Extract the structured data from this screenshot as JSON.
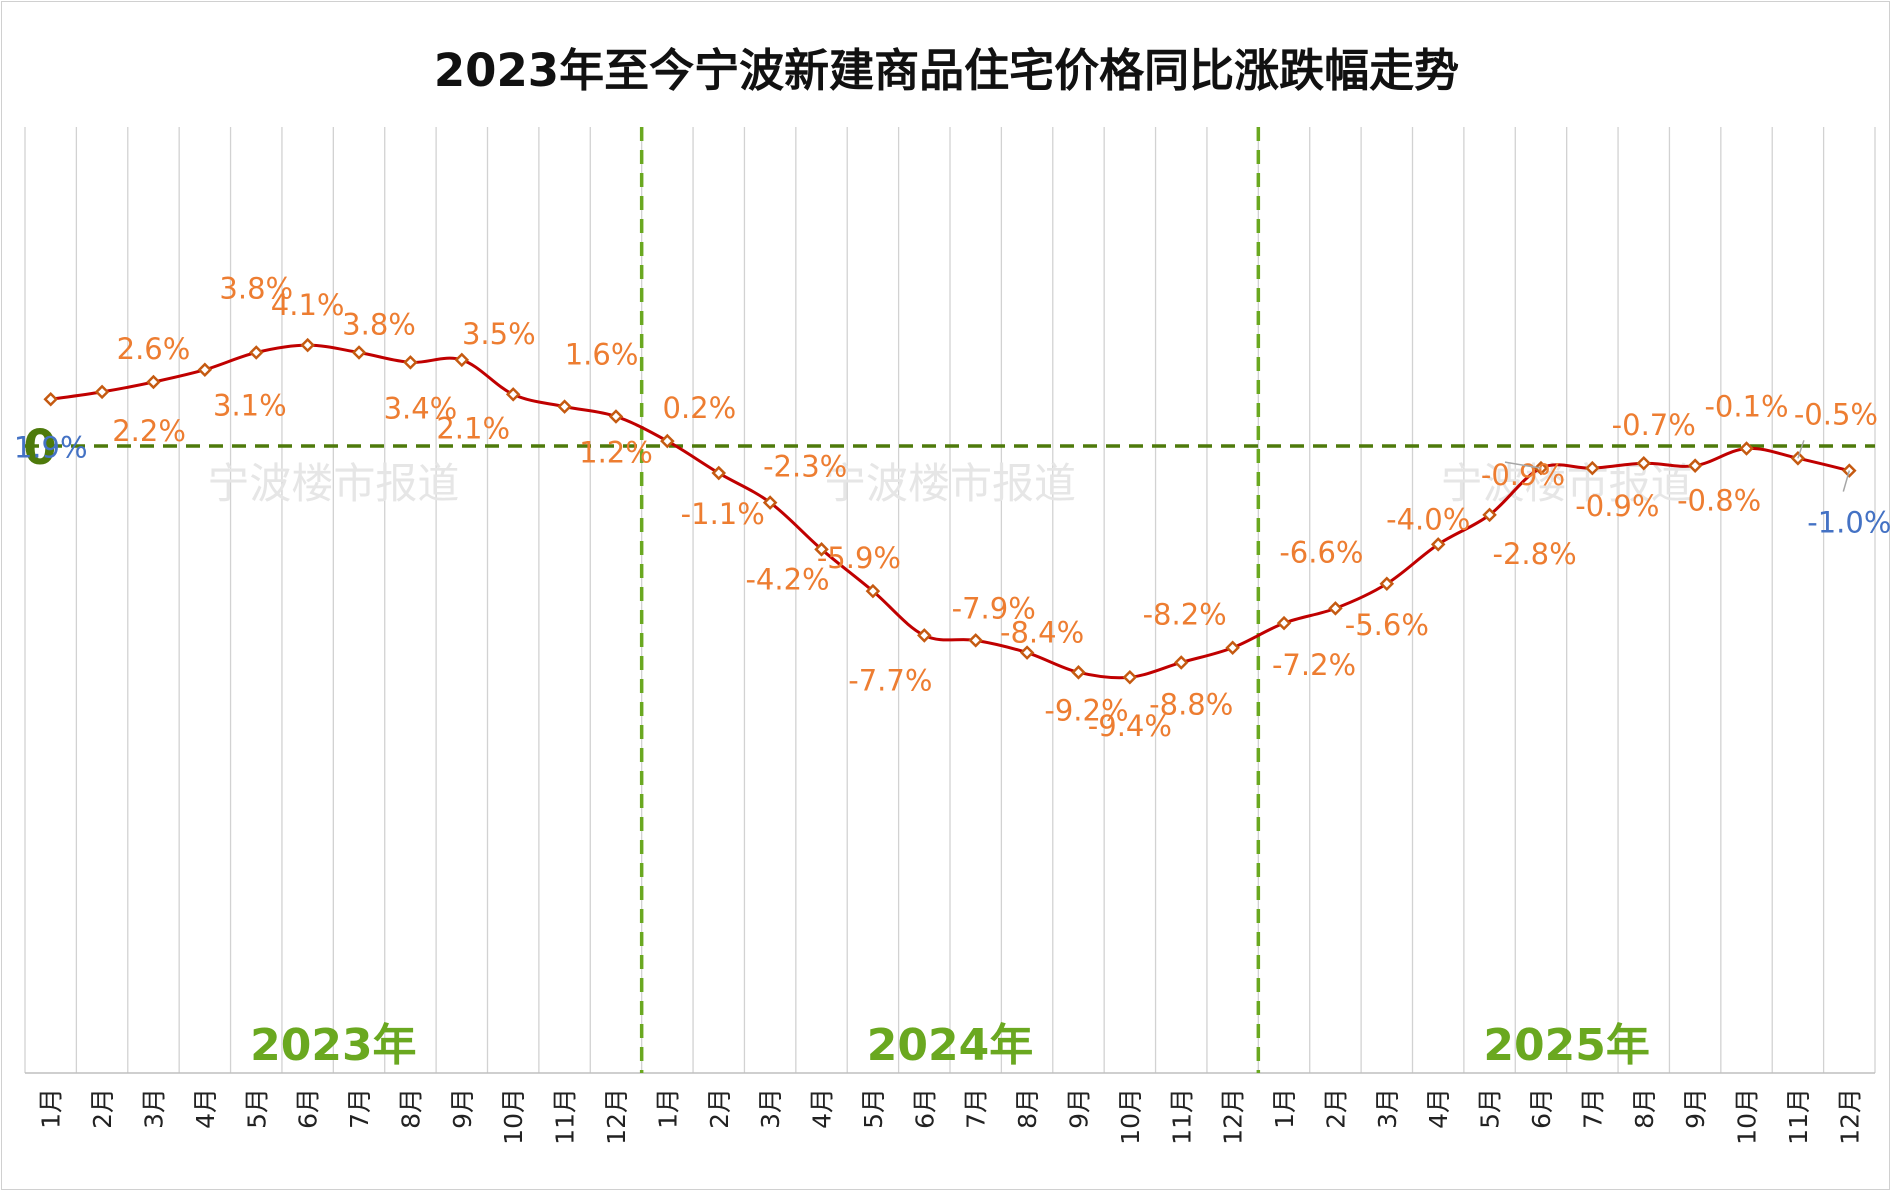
{
  "chart_data": {
    "type": "line",
    "title": "2023年至今宁波新建商品住宅价格同比涨跌幅走势",
    "xlabel": "",
    "ylabel": "",
    "ylim": [
      -12,
      6.5
    ],
    "grid": true,
    "years": [
      "2023年",
      "2024年",
      "2025年"
    ],
    "categories": [
      "1月",
      "2月",
      "3月",
      "4月",
      "5月",
      "6月",
      "7月",
      "8月",
      "9月",
      "10月",
      "11月",
      "12月",
      "1月",
      "2月",
      "3月",
      "4月",
      "5月",
      "6月",
      "7月",
      "8月",
      "9月",
      "10月",
      "11月",
      "12月",
      "1月",
      "2月",
      "3月",
      "4月",
      "5月",
      "6月",
      "7月",
      "8月",
      "9月",
      "10月",
      "11月",
      "12月"
    ],
    "values": [
      1.9,
      2.2,
      2.6,
      3.1,
      3.8,
      4.1,
      3.8,
      3.4,
      3.5,
      2.1,
      1.6,
      1.2,
      0.2,
      -1.1,
      -2.3,
      -4.2,
      -5.9,
      -7.7,
      -7.9,
      -8.4,
      -9.2,
      -9.4,
      -8.8,
      -8.2,
      -7.2,
      -6.6,
      -5.6,
      -4.0,
      -2.8,
      -0.9,
      -0.9,
      -0.7,
      -0.8,
      -0.1,
      -0.5,
      -1.0
    ],
    "labels": [
      "1.9%",
      "2.2%",
      "2.6%",
      "3.1%",
      "3.8%",
      "4.1%",
      "3.8%",
      "3.4%",
      "3.5%",
      "2.1%",
      "1.6%",
      "1.2%",
      "0.2%",
      "-1.1%",
      "-2.3%",
      "-4.2%",
      "-5.9%",
      "-7.7%",
      "-7.9%",
      "-8.4%",
      "-9.2%",
      "-9.4%",
      "-8.8%",
      "-8.2%",
      "-7.2%",
      "-6.6%",
      "-5.6%",
      "-4.0%",
      "-2.8%",
      "-0.9%",
      "-0.9%",
      "-0.7%",
      "-0.8%",
      "-0.1%",
      "-0.5%",
      "-1.0%"
    ],
    "zero_label": "0",
    "watermark": "宁波楼市报道",
    "colors": {
      "line": "#c00000",
      "marker": "#c55a11",
      "label": "#ed7d31",
      "end_label": "#4472c4",
      "zero_line": "#4e7a0b",
      "divider": "#6aa820",
      "year_text": "#6aa820",
      "zero_text": "#4e7a0b"
    }
  }
}
